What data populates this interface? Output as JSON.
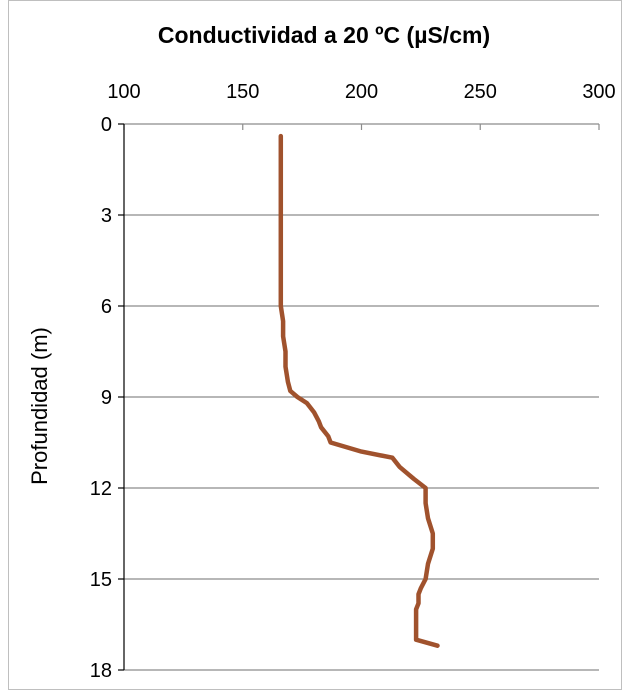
{
  "chart_data": {
    "type": "line",
    "title": "Conductividad  a  20 ºC (µS/cm)",
    "xlabel": "",
    "ylabel": "Profundidad (m)",
    "xlim": [
      100,
      300
    ],
    "ylim": [
      0,
      18
    ],
    "x_axis_position": "top",
    "y_axis_inverted": true,
    "x_ticks": [
      100,
      150,
      200,
      250,
      300
    ],
    "y_ticks": [
      0,
      3,
      6,
      9,
      12,
      15,
      18
    ],
    "grid": "horizontal",
    "line_color": "#a0522d",
    "series": [
      {
        "depth": [
          0.4,
          1.0,
          2.0,
          3.0,
          4.0,
          5.0,
          6.0,
          6.5,
          7.0,
          7.5,
          8.0,
          8.5,
          8.8,
          9.0,
          9.2,
          9.5,
          9.8,
          10.0,
          10.3,
          10.5,
          10.8,
          11.0,
          11.3,
          11.5,
          11.7,
          12.0,
          12.5,
          13.0,
          13.5,
          14.0,
          14.5,
          15.0,
          15.3,
          15.5,
          15.8,
          16.0,
          16.5,
          17.0,
          17.2
        ],
        "values": [
          166,
          166,
          166,
          166,
          166,
          166,
          166,
          167,
          167,
          168,
          168,
          169,
          170,
          173,
          177,
          180,
          182,
          183,
          186,
          187,
          200,
          213,
          216,
          219,
          222,
          227,
          227,
          228,
          230,
          230,
          228,
          227,
          225,
          224,
          224,
          223,
          223,
          223,
          232
        ]
      }
    ]
  }
}
